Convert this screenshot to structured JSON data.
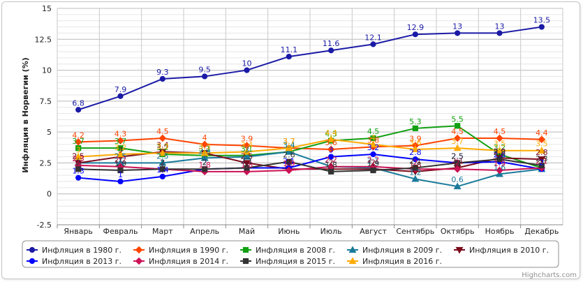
{
  "chart_data": {
    "type": "line",
    "title": "",
    "xlabel": "",
    "ylabel": "Инфляция в Норвегии (%)",
    "ylim": [
      -2.5,
      15
    ],
    "yticks": [
      "-2.5",
      "0",
      "2.5",
      "5",
      "7.5",
      "10",
      "12.5",
      "15"
    ],
    "categories": [
      "Январь",
      "Февраль",
      "Март",
      "Апрель",
      "Май",
      "Июнь",
      "Июль",
      "Август",
      "Сентябрь",
      "Октябрь",
      "Ноябрь",
      "Декабрь"
    ],
    "grid": true,
    "legend_position": "bottom",
    "series": [
      {
        "name": "Инфляция в 1980 г.",
        "color": "#1a1aa6",
        "marker": "circle",
        "values": [
          6.8,
          7.9,
          9.3,
          9.5,
          10,
          11.1,
          11.6,
          12.1,
          12.9,
          13,
          13,
          13.5
        ]
      },
      {
        "name": "Инфляция в 1990 г.",
        "color": "#ff4400",
        "marker": "diamond",
        "values": [
          4.2,
          4.3,
          4.5,
          4,
          3.9,
          3.7,
          3.6,
          3.8,
          3.9,
          4.5,
          4.5,
          4.4
        ]
      },
      {
        "name": "Инфляция в 2008 г.",
        "color": "#11a011",
        "marker": "square",
        "values": [
          3.7,
          3.7,
          3.2,
          3.1,
          3.1,
          3.4,
          4.3,
          4.5,
          5.3,
          5.5,
          3.2,
          2.1
        ]
      },
      {
        "name": "Инфляция в 2009 г.",
        "color": "#1a7a9a",
        "marker": "triangle",
        "values": [
          2.5,
          2.5,
          2.5,
          2.9,
          3,
          3.4,
          2.2,
          2.1,
          1.2,
          0.6,
          1.6,
          2
        ]
      },
      {
        "name": "Инфляция в 2010 г.",
        "color": "#7a0a1a",
        "marker": "triangle-down",
        "values": [
          2.5,
          3,
          3.4,
          3.3,
          2.5,
          2,
          2,
          2,
          1.8,
          2.1,
          2.9,
          2.8
        ]
      },
      {
        "name": "Инфляция в 2013 г.",
        "color": "#0000ff",
        "marker": "circle",
        "values": [
          1.3,
          1,
          1.4,
          2,
          2.1,
          2.1,
          3,
          3.2,
          2.8,
          2.5,
          2.6,
          2
        ]
      },
      {
        "name": "Инфляция в 2014 г.",
        "color": "#cc1155",
        "marker": "diamond",
        "values": [
          2.3,
          2.2,
          2,
          1.8,
          1.8,
          1.9,
          2.2,
          2.2,
          2,
          2,
          1.9,
          2.1
        ]
      },
      {
        "name": "Инфляция в 2015 г.",
        "color": "#333333",
        "marker": "square",
        "values": [
          2,
          1.9,
          2,
          2,
          2.1,
          2.6,
          1.8,
          1.9,
          2.1,
          2.5,
          2.8,
          2.3
        ]
      },
      {
        "name": "Инфляция в 2016 г.",
        "color": "#ffaa00",
        "marker": "triangle",
        "values": [
          3,
          3.2,
          3.3,
          3.3,
          3.4,
          3.7,
          4.4,
          4,
          3.6,
          3.7,
          3.5,
          3.5
        ]
      }
    ]
  },
  "credits": "Highcharts.com"
}
